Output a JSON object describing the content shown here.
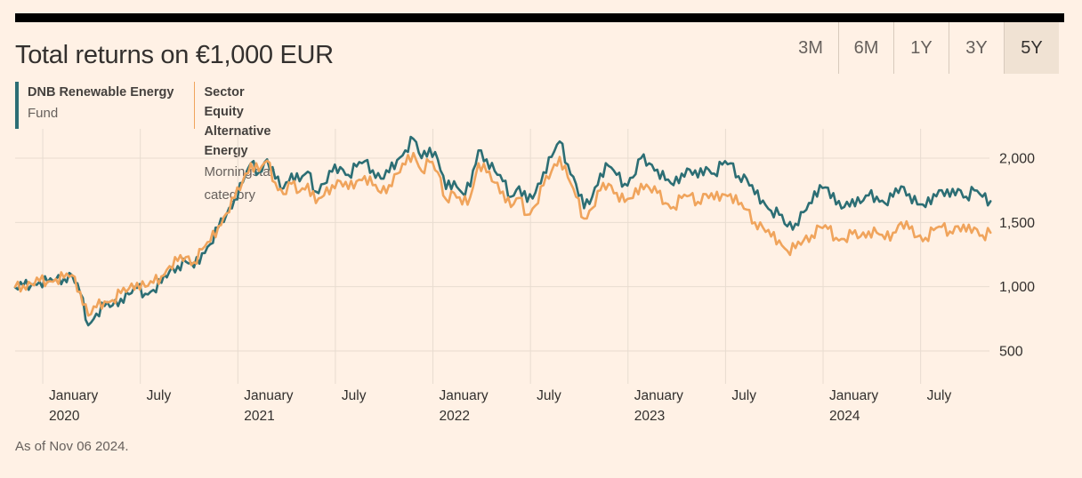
{
  "header": {
    "title": "Total returns on €1,000 EUR"
  },
  "range_selector": {
    "options": [
      "3M",
      "6M",
      "1Y",
      "3Y",
      "5Y"
    ],
    "selected": "5Y"
  },
  "legend": {
    "fund": {
      "name": "DNB Renewable Energy",
      "type": "Fund",
      "color": "#2C6E74"
    },
    "category": {
      "name": "Sector Equity Alternative Energy",
      "type": "Morningstar category",
      "color": "#F0A45C"
    }
  },
  "footer": {
    "as_of": "As of Nov 06 2024."
  },
  "colors": {
    "background": "#FFF1E5",
    "accent_bar": "#000000",
    "gridline": "#E8DCD0",
    "axis_text": "#33302E",
    "muted_text": "#66605C",
    "selected_range_bg": "#F0E2D3",
    "fund_line": "#2C6E74",
    "category_line": "#F0A45C"
  },
  "chart_data": {
    "type": "line",
    "title": "Total returns on €1,000 EUR",
    "currency": "EUR",
    "initial_investment": 1000,
    "period": "5Y",
    "x_start": "2019-11",
    "x_end": "2024-11-06",
    "points_per_month": 2,
    "grid": true,
    "legend_position": "top-left",
    "ylim": [
      250,
      2230
    ],
    "noise_amplitude": 9,
    "y_ticks": [
      {
        "value": 2000,
        "label": "2,000"
      },
      {
        "value": 1500,
        "label": "1,500"
      },
      {
        "value": 1000,
        "label": "1,000"
      },
      {
        "value": 500,
        "label": "500"
      }
    ],
    "x_ticks": [
      {
        "label": "January",
        "year": "2020",
        "month_offset": 2
      },
      {
        "label": "July",
        "year": "",
        "month_offset": 8
      },
      {
        "label": "January",
        "year": "2021",
        "month_offset": 14
      },
      {
        "label": "July",
        "year": "",
        "month_offset": 20
      },
      {
        "label": "January",
        "year": "2022",
        "month_offset": 26
      },
      {
        "label": "July",
        "year": "",
        "month_offset": 32
      },
      {
        "label": "January",
        "year": "2023",
        "month_offset": 38
      },
      {
        "label": "July",
        "year": "",
        "month_offset": 44
      },
      {
        "label": "January",
        "year": "2024",
        "month_offset": 50
      },
      {
        "label": "July",
        "year": "",
        "month_offset": 56
      }
    ],
    "series": [
      {
        "name": "DNB Renewable Energy Fund",
        "color": "#2C6E74",
        "values": [
          995,
          1005,
          1015,
          1040,
          1035,
          1055,
          1065,
          1090,
          950,
          700,
          790,
          850,
          855,
          905,
          940,
          990,
          945,
          975,
          1030,
          1120,
          1160,
          1195,
          1150,
          1260,
          1330,
          1460,
          1560,
          1680,
          1810,
          1960,
          1890,
          1990,
          1840,
          1765,
          1880,
          1820,
          1895,
          1740,
          1800,
          1895,
          1930,
          1870,
          1935,
          1975,
          1905,
          1840,
          1890,
          1985,
          2060,
          2150,
          2000,
          2080,
          1990,
          1760,
          1820,
          1730,
          1780,
          2060,
          1990,
          1900,
          1820,
          1700,
          1780,
          1660,
          1730,
          1890,
          2010,
          2130,
          1950,
          1800,
          1610,
          1700,
          1880,
          1940,
          1870,
          1800,
          1850,
          2000,
          1960,
          1910,
          1830,
          1790,
          1880,
          1910,
          1850,
          1930,
          1880,
          1950,
          1960,
          1860,
          1840,
          1720,
          1670,
          1590,
          1560,
          1470,
          1490,
          1580,
          1650,
          1790,
          1770,
          1640,
          1620,
          1680,
          1650,
          1710,
          1700,
          1650,
          1700,
          1780,
          1720,
          1640,
          1620,
          1720,
          1750,
          1700,
          1760,
          1700,
          1750,
          1700,
          1665
        ]
      },
      {
        "name": "Sector Equity Alternative Energy (Morningstar category)",
        "color": "#F0A45C",
        "values": [
          1000,
          1010,
          1020,
          1045,
          1040,
          1060,
          1070,
          1090,
          960,
          775,
          840,
          885,
          895,
          950,
          985,
          1030,
          1000,
          1030,
          1080,
          1160,
          1200,
          1230,
          1190,
          1290,
          1350,
          1470,
          1570,
          1690,
          1820,
          1960,
          1900,
          1980,
          1810,
          1720,
          1800,
          1740,
          1800,
          1650,
          1710,
          1790,
          1820,
          1760,
          1820,
          1860,
          1790,
          1730,
          1790,
          1880,
          1950,
          2040,
          1900,
          1970,
          1890,
          1680,
          1730,
          1640,
          1700,
          1960,
          1890,
          1810,
          1740,
          1620,
          1690,
          1560,
          1630,
          1790,
          1900,
          2010,
          1850,
          1700,
          1530,
          1610,
          1750,
          1800,
          1730,
          1660,
          1690,
          1800,
          1770,
          1730,
          1650,
          1620,
          1690,
          1710,
          1660,
          1720,
          1680,
          1720,
          1720,
          1640,
          1600,
          1500,
          1460,
          1390,
          1360,
          1280,
          1300,
          1360,
          1400,
          1465,
          1450,
          1380,
          1370,
          1410,
          1390,
          1430,
          1420,
          1370,
          1420,
          1500,
          1450,
          1390,
          1380,
          1440,
          1465,
          1430,
          1470,
          1430,
          1460,
          1400,
          1420
        ]
      }
    ]
  }
}
